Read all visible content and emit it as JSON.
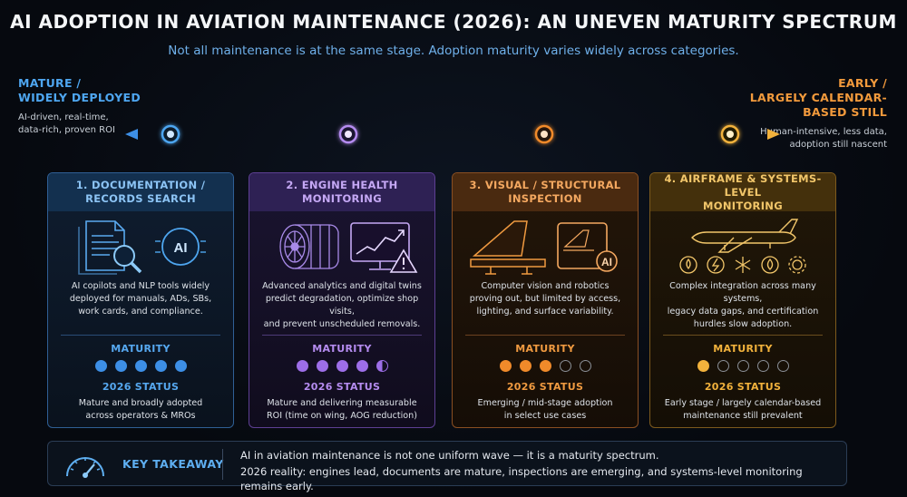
{
  "title": "AI ADOPTION IN AVIATION MAINTENANCE (2026): AN UNEVEN MATURITY SPECTRUM",
  "subtitle": "Not all maintenance is at the same stage. Adoption maturity varies widely across categories.",
  "spectrum": {
    "left": {
      "label_line1": "MATURE /",
      "label_line2": "WIDELY DEPLOYED",
      "desc_line1": "AI-driven, real-time,",
      "desc_line2": "data-rich, proven ROI"
    },
    "right": {
      "label_line1": "EARLY /",
      "label_line2": "LARGELY CALENDAR-",
      "label_line3": "BASED STILL",
      "desc_line1": "Human-intensive, less data,",
      "desc_line2": "adoption still nascent"
    },
    "colors": [
      "#3d8fe6",
      "#9d6ee8",
      "#f08a2a",
      "#f2b23c"
    ]
  },
  "maturity_label": "MATURITY",
  "status_label": "2026 STATUS",
  "cards": [
    {
      "title_line1": "1. DOCUMENTATION /",
      "title_line2": "RECORDS SEARCH",
      "illus_text": "AI",
      "body": [
        "AI copilots and NLP tools widely",
        "deployed for manuals, ADs, SBs,",
        "work cards, and compliance."
      ],
      "maturity": 5,
      "maturity_max": 5,
      "status": [
        "Mature and broadly adopted",
        "across operators & MROs"
      ],
      "icons": [
        "document-icon",
        "magnifier-icon",
        "ai-chip-icon"
      ]
    },
    {
      "title_line1": "2. ENGINE HEALTH",
      "title_line2": "MONITORING",
      "body": [
        "Advanced analytics and digital twins",
        "predict degradation, optimize shop visits,",
        "and prevent unscheduled removals."
      ],
      "maturity": 4.5,
      "maturity_max": 5,
      "status": [
        "Mature and delivering measurable",
        "ROI (time on wing, AOG reduction)"
      ],
      "icons": [
        "jet-engine-icon",
        "trend-monitor-icon",
        "warning-icon"
      ]
    },
    {
      "title_line1": "3. VISUAL / STRUCTURAL",
      "title_line2": "INSPECTION",
      "illus_text": "AI",
      "body": [
        "Computer vision and robotics",
        "proving out, but limited by access,",
        "lighting, and surface variability."
      ],
      "maturity": 3,
      "maturity_max": 5,
      "status": [
        "Emerging / mid-stage adoption",
        "in select use cases"
      ],
      "icons": [
        "aircraft-tail-icon",
        "inspection-tablet-icon"
      ]
    },
    {
      "title_line1": "4. AIRFRAME & SYSTEMS-LEVEL",
      "title_line2": "MONITORING",
      "body": [
        "Complex integration across many systems,",
        "legacy data gaps, and certification",
        "hurdles slow adoption."
      ],
      "maturity": 1,
      "maturity_max": 5,
      "status": [
        "Early stage / largely calendar-based",
        "maintenance still prevalent"
      ],
      "icons": [
        "airplane-icon",
        "fuel-icon",
        "electric-icon",
        "snowflake-icon",
        "hydraulic-icon",
        "gear-icon"
      ]
    }
  ],
  "takeaway": {
    "label": "KEY TAKEAWAY",
    "line1": "AI in aviation maintenance is not one uniform wave — it is a maturity spectrum.",
    "line2": "2026 reality: engines lead, documents are mature, inspections are emerging, and systems-level monitoring remains early."
  }
}
